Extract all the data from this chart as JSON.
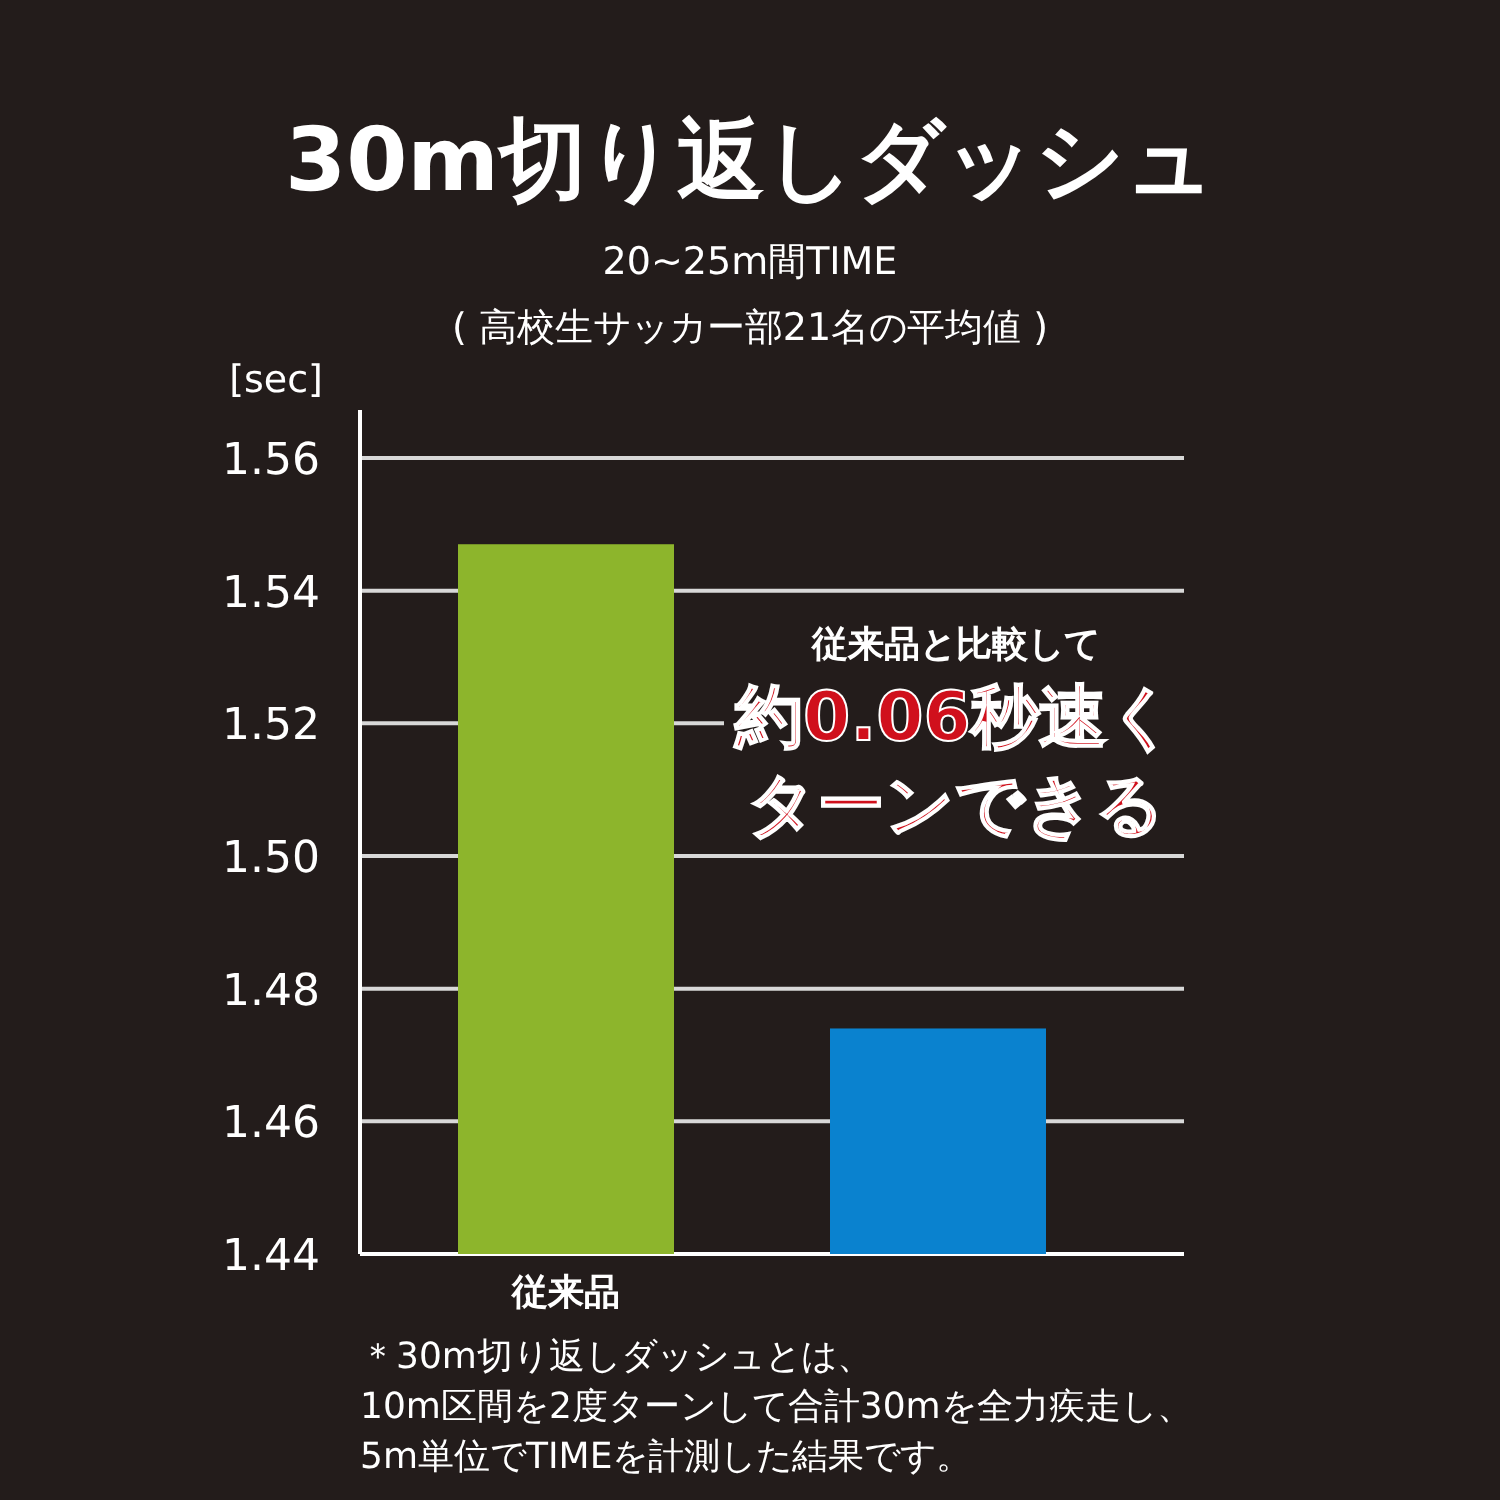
{
  "chart_data": {
    "type": "bar",
    "title": "30m切り返しダッシュ",
    "subtitle": "20~25m間TIME",
    "ylabel": "[sec]",
    "categories": [
      "従来品",
      null
    ],
    "values": [
      1.547,
      1.474
    ],
    "colors": [
      "#8db52c",
      "#0a82cf"
    ],
    "ylim": [
      1.44,
      1.56
    ],
    "yticks": [
      {
        "value": 1.44,
        "label": "1.44"
      },
      {
        "value": 1.46,
        "label": "1.46"
      },
      {
        "value": 1.48,
        "label": "1.48"
      },
      {
        "value": 1.5,
        "label": "1.50"
      },
      {
        "value": 1.52,
        "label": "1.52"
      },
      {
        "value": 1.54,
        "label": "1.54"
      },
      {
        "value": 1.56,
        "label": "1.56"
      }
    ],
    "grid": "y",
    "annotations": [
      "( 高校生サッカー部21名の平均値 )",
      "従来品と比較して",
      "約0.06秒速く",
      "ターンできる",
      "＊30m切り返しダッシュとは、",
      "10m区間を2度ターンして合計30mを全力疾走し、",
      "5m単位でTIMEを計測した結果です。"
    ]
  }
}
